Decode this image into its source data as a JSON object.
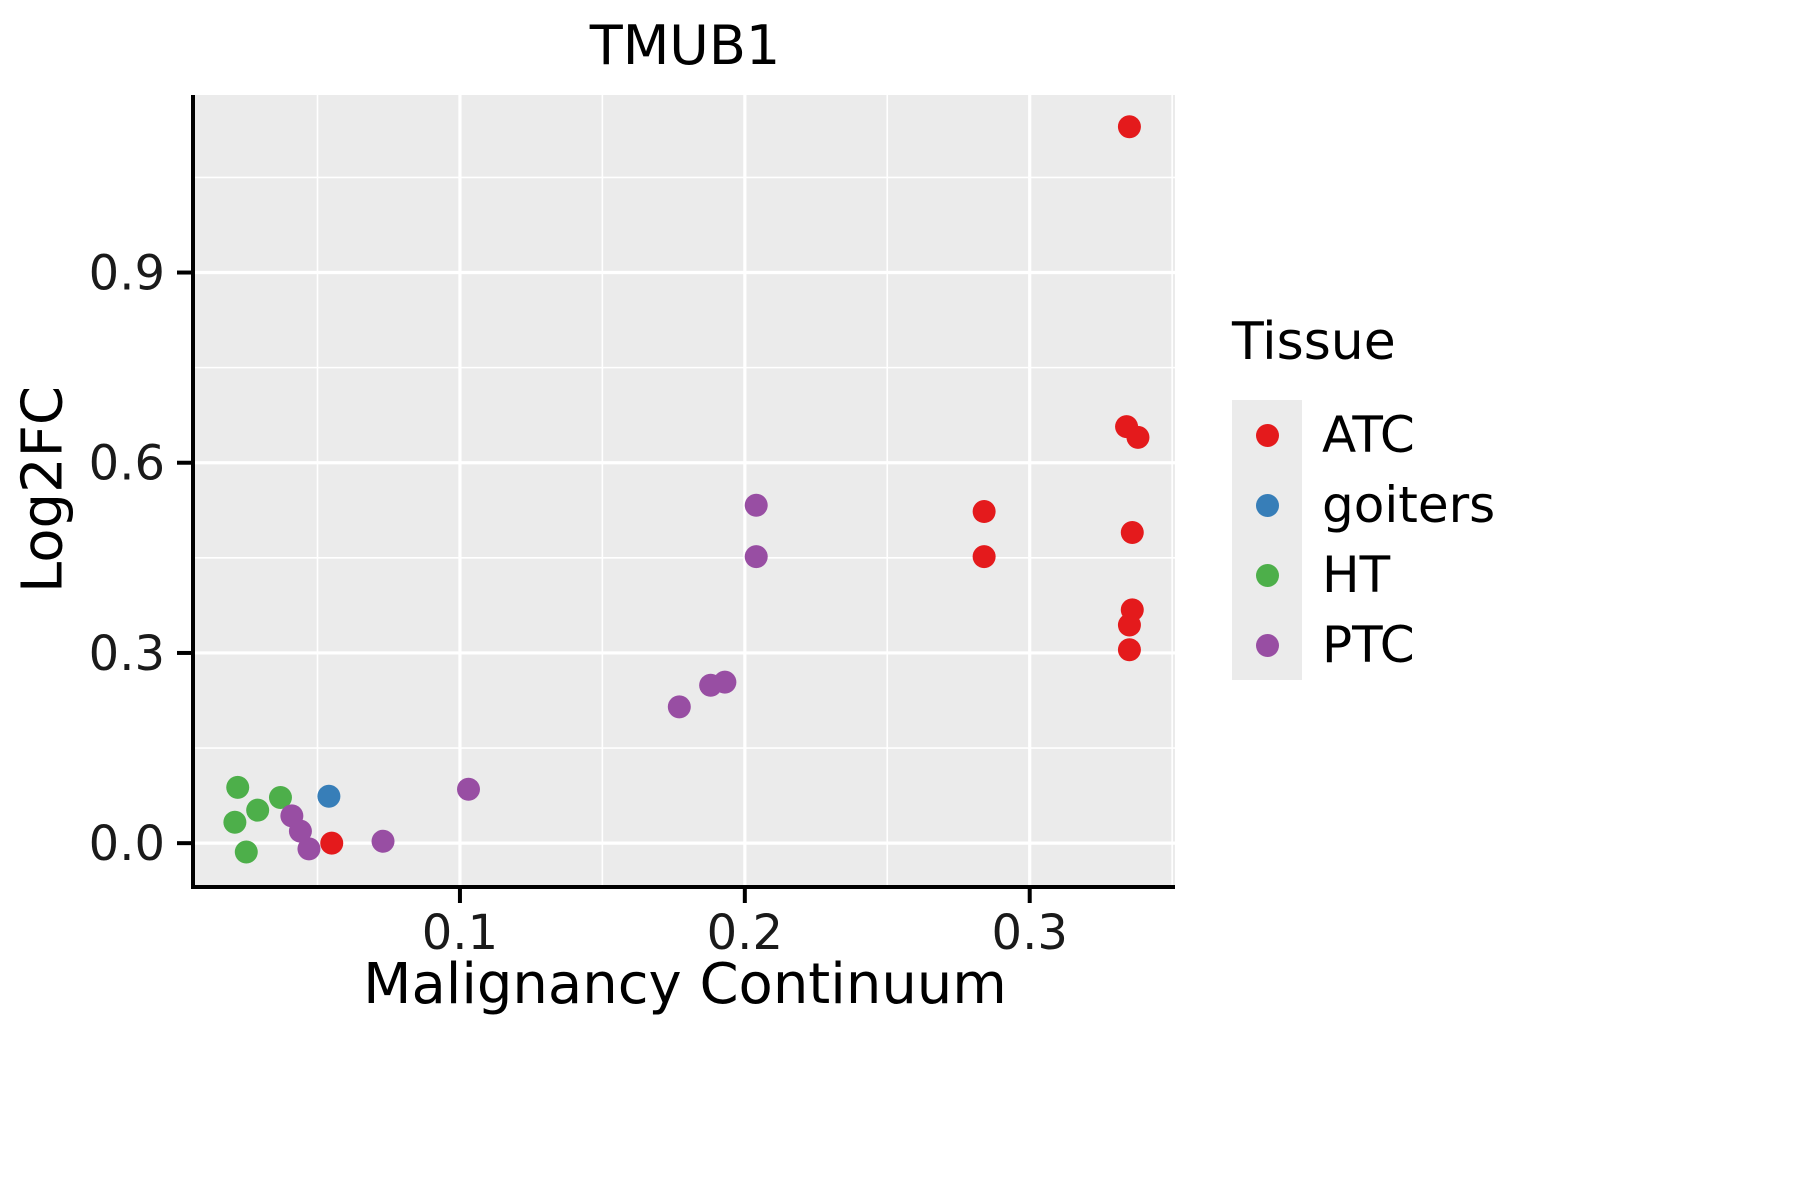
{
  "chart_data": {
    "type": "scatter",
    "title": "TMUB1",
    "xlabel": "Malignancy Continuum",
    "ylabel": "Log2FC",
    "xlim": [
      0.007,
      0.351
    ],
    "ylim": [
      -0.066,
      1.18
    ],
    "x_ticks": {
      "major": [
        0.1,
        0.2,
        0.3
      ],
      "minor": [
        0.05,
        0.15,
        0.25,
        0.35
      ],
      "labels": [
        "0.1",
        "0.2",
        "0.3"
      ]
    },
    "y_ticks": {
      "major": [
        0.0,
        0.3,
        0.6,
        0.9
      ],
      "minor": [
        0.15,
        0.45,
        0.75,
        1.05
      ],
      "labels": [
        "0.0",
        "0.3",
        "0.6",
        "0.9"
      ]
    },
    "grid": true,
    "panel_bg": "#EBEBEB",
    "grid_color": "#FFFFFF",
    "axis_color": "#000000",
    "legend_title": "Tissue",
    "legend_position": "right",
    "series": [
      {
        "name": "ATC",
        "color": "#E41A1C",
        "points": [
          [
            0.335,
            1.13
          ],
          [
            0.334,
            0.657
          ],
          [
            0.338,
            0.64
          ],
          [
            0.336,
            0.49
          ],
          [
            0.336,
            0.368
          ],
          [
            0.335,
            0.344
          ],
          [
            0.335,
            0.305
          ],
          [
            0.284,
            0.523
          ],
          [
            0.284,
            0.452
          ],
          [
            0.055,
            0.0
          ]
        ]
      },
      {
        "name": "goiters",
        "color": "#377EB8",
        "points": [
          [
            0.054,
            0.074
          ]
        ]
      },
      {
        "name": "HT",
        "color": "#4DAF4A",
        "points": [
          [
            0.022,
            0.088
          ],
          [
            0.021,
            0.033
          ],
          [
            0.025,
            -0.014
          ],
          [
            0.029,
            0.052
          ],
          [
            0.037,
            0.072
          ]
        ]
      },
      {
        "name": "PTC",
        "color": "#984EA3",
        "points": [
          [
            0.041,
            0.043
          ],
          [
            0.044,
            0.019
          ],
          [
            0.047,
            -0.009
          ],
          [
            0.073,
            0.003
          ],
          [
            0.103,
            0.085
          ],
          [
            0.177,
            0.215
          ],
          [
            0.188,
            0.249
          ],
          [
            0.193,
            0.254
          ],
          [
            0.204,
            0.533
          ],
          [
            0.204,
            0.452
          ]
        ]
      }
    ]
  }
}
